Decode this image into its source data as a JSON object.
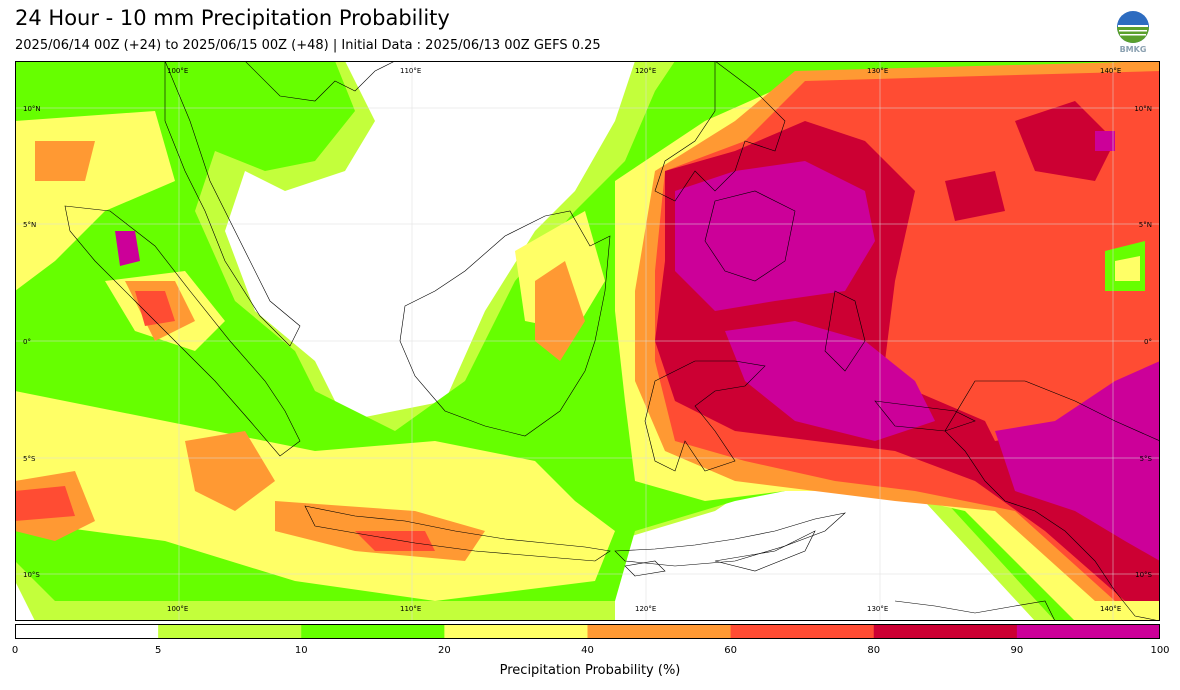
{
  "header": {
    "title": "24 Hour - 10 mm Precipitation Probability",
    "subtitle": "2025/06/14 00Z (+24) to 2025/06/15 00Z (+48) | Initial Data : 2025/06/13 00Z GEFS 0.25"
  },
  "logo": {
    "icon": "bmkg-logo-icon",
    "text": "BMKG"
  },
  "map": {
    "extent": {
      "lon_min": 95,
      "lon_max": 144,
      "lat_min": -12,
      "lat_max": 12
    },
    "lon_ticks": [
      100,
      110,
      120,
      130,
      140
    ],
    "lat_ticks": [
      10,
      5,
      0,
      -5,
      -10
    ],
    "lon_labels": [
      "100°E",
      "110°E",
      "120°E",
      "130°E",
      "140°E"
    ],
    "lat_labels": [
      "10°N",
      "5°N",
      "0°",
      "5°S",
      "10°S"
    ]
  },
  "colorbar": {
    "title": "Precipitation Probability (%)",
    "ticks": [
      "0",
      "5",
      "10",
      "20",
      "40",
      "60",
      "80",
      "90",
      "100"
    ],
    "colors": [
      "#ffffff",
      "#c3ff3b",
      "#66ff00",
      "#ffff66",
      "#ff9933",
      "#ff4c33",
      "#cc0033",
      "#cc0099"
    ]
  }
}
